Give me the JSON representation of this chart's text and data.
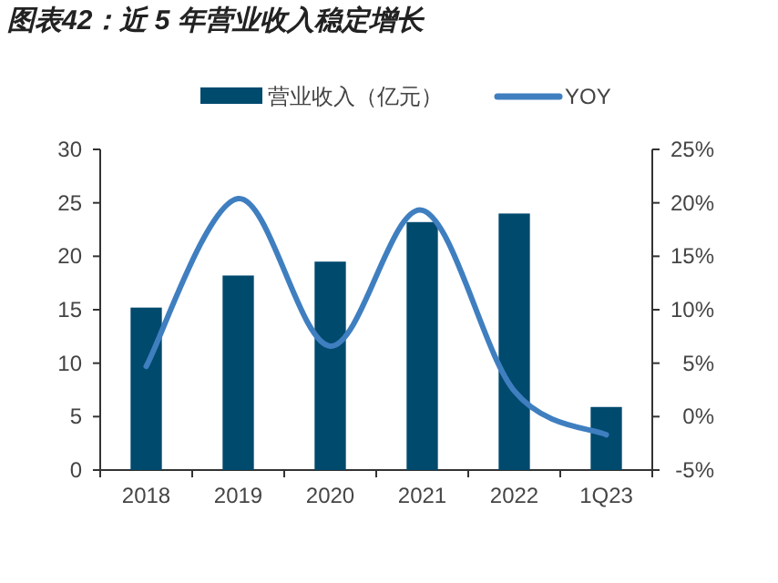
{
  "chart_data": {
    "type": "bar",
    "title": "图表42：近 5 年营业收入稳定增长",
    "categories": [
      "2018",
      "2019",
      "2020",
      "2021",
      "2022",
      "1Q23"
    ],
    "series": [
      {
        "name": "营业收入（亿元）",
        "color": "#004a6e",
        "values": [
          15.2,
          18.2,
          19.5,
          23.2,
          24.0,
          5.9
        ]
      },
      {
        "name": "YOY",
        "type": "line",
        "axis": "y2",
        "color": "#3f7fc0",
        "values": [
          4.7,
          20.4,
          6.6,
          19.3,
          2.4,
          -1.7
        ]
      }
    ],
    "ylim": [
      0,
      30
    ],
    "yticks": [
      0,
      5,
      10,
      15,
      20,
      25,
      30
    ],
    "y2lim": [
      -5,
      25
    ],
    "y2ticks": [
      {
        "value": -5,
        "label": "-5%"
      },
      {
        "value": 0,
        "label": "0%"
      },
      {
        "value": 5,
        "label": "5%"
      },
      {
        "value": 10,
        "label": "10%"
      },
      {
        "value": 15,
        "label": "15%"
      },
      {
        "value": 20,
        "label": "20%"
      },
      {
        "value": 25,
        "label": "25%"
      }
    ],
    "legend": "top",
    "grid": false
  }
}
